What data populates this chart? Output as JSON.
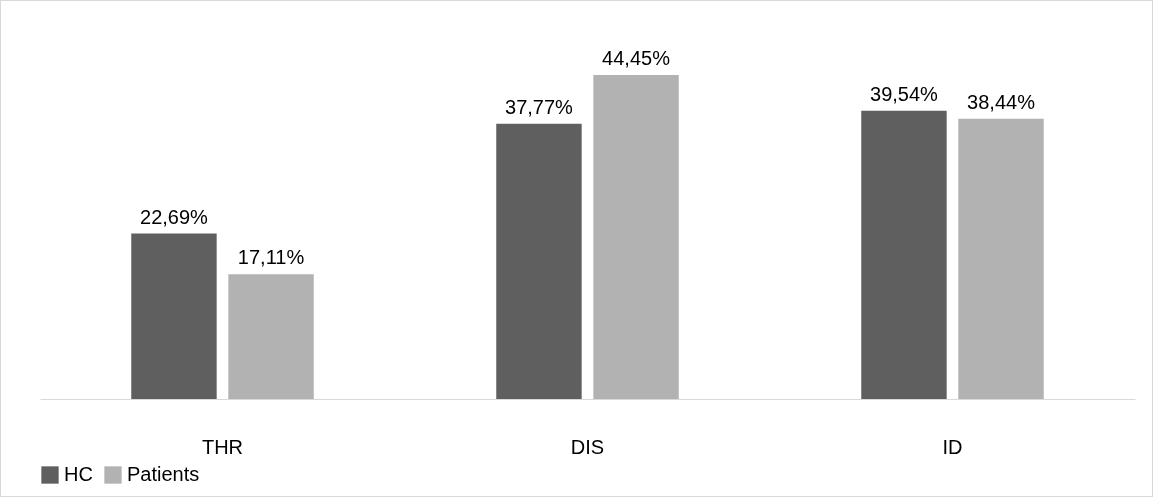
{
  "chart_data": {
    "type": "bar",
    "categories": [
      "THR",
      "DIS",
      "ID"
    ],
    "series": [
      {
        "name": "HC",
        "color": "#5f5f5f",
        "values": [
          22.69,
          37.77,
          39.54
        ],
        "value_labels": [
          "22,69%",
          "37,77%",
          "39,54%"
        ]
      },
      {
        "name": "Patients",
        "color": "#b2b2b2",
        "values": [
          17.11,
          44.45,
          38.44
        ],
        "value_labels": [
          "17,11%",
          "44,45%",
          "38,44%"
        ]
      }
    ],
    "legend": "bottom"
  }
}
